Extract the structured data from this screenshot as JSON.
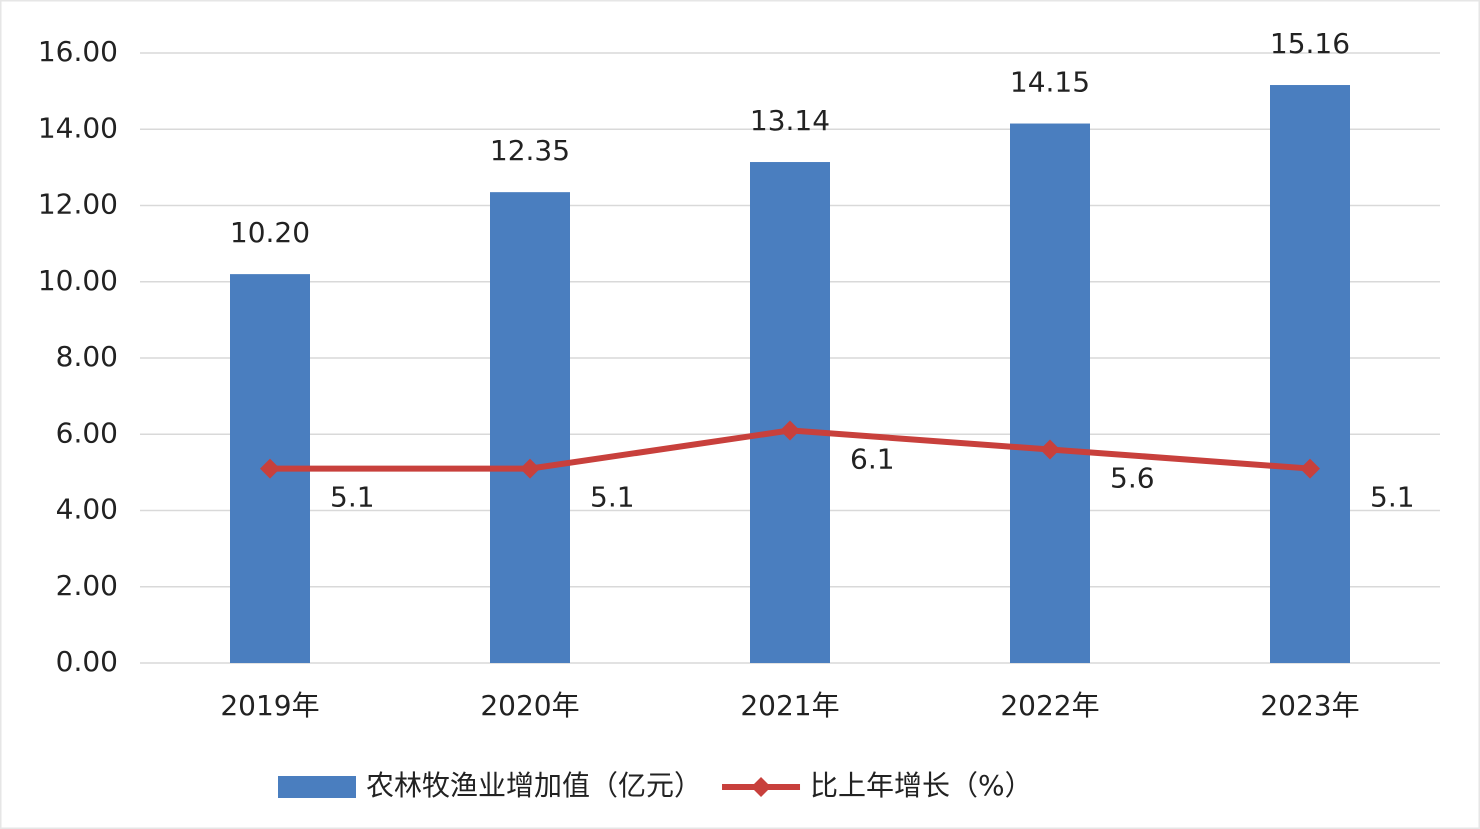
{
  "chart_data": {
    "type": "bar",
    "categories": [
      "2019年",
      "2020年",
      "2021年",
      "2022年",
      "2023年"
    ],
    "series": [
      {
        "name": "农林牧渔业增加值（亿元）",
        "type": "bar",
        "color": "#4a7ebf",
        "values": [
          10.2,
          12.35,
          13.14,
          14.15,
          15.16
        ],
        "value_labels": [
          "10.20",
          "12.35",
          "13.14",
          "14.15",
          "15.16"
        ]
      },
      {
        "name": "比上年增长（%）",
        "type": "line",
        "color": "#c8403c",
        "values": [
          5.1,
          5.1,
          6.1,
          5.6,
          5.1
        ]
      }
    ],
    "ylim": [
      0,
      16
    ],
    "yticks": [
      {
        "value": 0,
        "label": "0.00"
      },
      {
        "value": 2,
        "label": "2.00"
      },
      {
        "value": 4,
        "label": "4.00"
      },
      {
        "value": 6,
        "label": "6.00"
      },
      {
        "value": 8,
        "label": "8.00"
      },
      {
        "value": 10,
        "label": "10.00"
      },
      {
        "value": 12,
        "label": "12.00"
      },
      {
        "value": 14,
        "label": "14.00"
      },
      {
        "value": 16,
        "label": "16.00"
      }
    ],
    "grid": true,
    "legend": "bottom"
  }
}
